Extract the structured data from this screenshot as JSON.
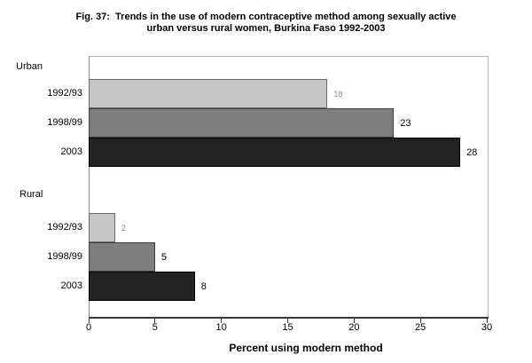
{
  "figure": {
    "title_line1": "Fig. 37:  Trends in the use of modern contraceptive method among sexually active",
    "title_line2": "urban versus rural women, Burkina Faso 1992-2003"
  },
  "chart_data": {
    "type": "bar",
    "orientation": "horizontal",
    "title": "Fig. 37: Trends in the use of modern contraceptive method among sexually active urban versus rural women, Burkina Faso 1992-2003",
    "xlabel": "Percent using modern method",
    "xlim": [
      0,
      30
    ],
    "x_ticks": [
      0,
      5,
      10,
      15,
      20,
      25,
      30
    ],
    "grid": false,
    "legend": false,
    "value_labels": true,
    "groups": [
      {
        "label": "Urban",
        "bars": [
          {
            "category": "1992/93",
            "value": 18,
            "value_label": "18",
            "fill": "#c6c6c6",
            "border": "#6b6b6b",
            "value_label_color": "#8c8c8c",
            "muted_value_label": true
          },
          {
            "category": "1998/99",
            "value": 23,
            "value_label": "23",
            "fill": "#7f7f7f",
            "border": "#3f3f3f",
            "value_label_color": "#000000",
            "muted_value_label": false
          },
          {
            "category": "2003",
            "value": 28,
            "value_label": "28",
            "fill": "#232323",
            "border": "#000000",
            "value_label_color": "#000000",
            "muted_value_label": false
          }
        ]
      },
      {
        "label": "Rural",
        "bars": [
          {
            "category": "1992/93",
            "value": 2,
            "value_label": "2",
            "fill": "#c6c6c6",
            "border": "#6b6b6b",
            "value_label_color": "#8c8c8c",
            "muted_value_label": true
          },
          {
            "category": "1998/99",
            "value": 5,
            "value_label": "5",
            "fill": "#7f7f7f",
            "border": "#3f3f3f",
            "value_label_color": "#000000",
            "muted_value_label": false
          },
          {
            "category": "2003",
            "value": 8,
            "value_label": "8",
            "fill": "#232323",
            "border": "#000000",
            "value_label_color": "#000000",
            "muted_value_label": false
          }
        ]
      }
    ]
  }
}
